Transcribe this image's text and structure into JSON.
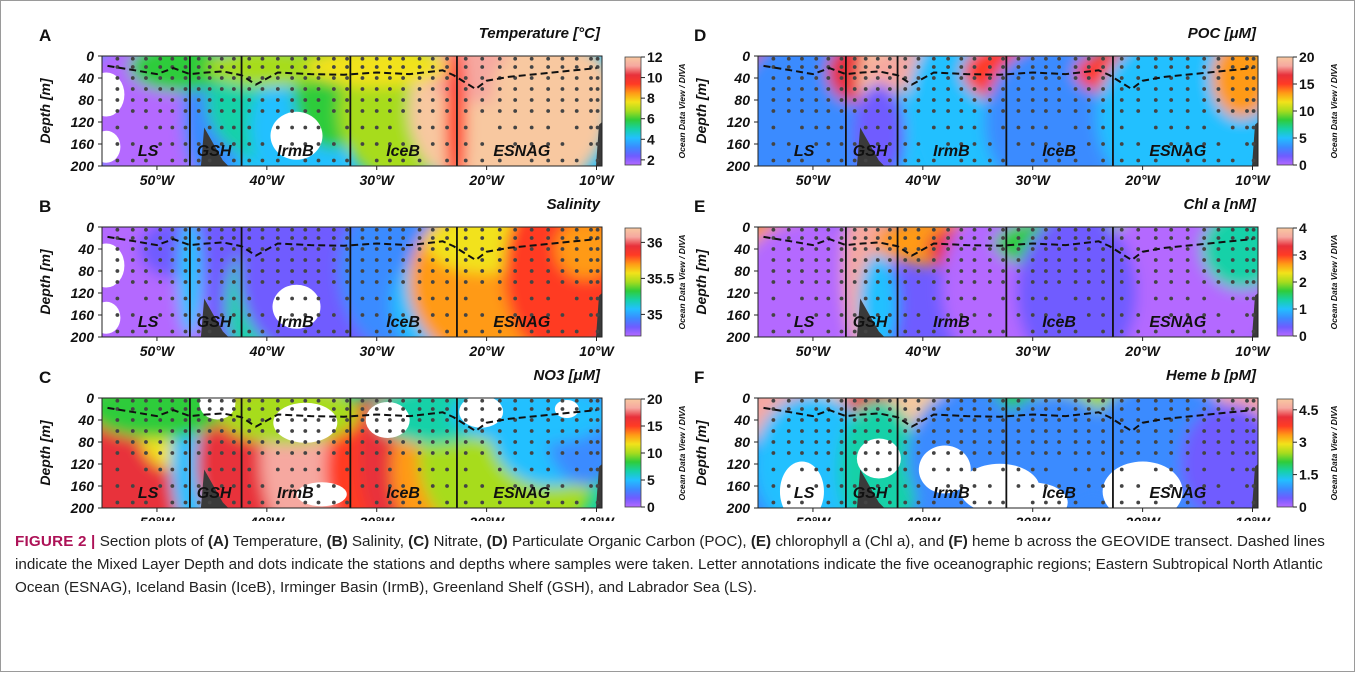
{
  "colors": {
    "caption_label": "#ad1257",
    "odv_scale": [
      "#b469ff",
      "#6f5cff",
      "#3a8bff",
      "#22c0ff",
      "#16d1a8",
      "#2fcc3a",
      "#a7dc1e",
      "#f2e21a",
      "#ff9a16",
      "#ff3b24",
      "#e8303a",
      "#f6a8a0",
      "#f8c8a0"
    ]
  },
  "xaxis": {
    "label": "",
    "ticks": [
      "50°W",
      "40°W",
      "30°W",
      "20°W",
      "10°W"
    ],
    "tick_values": [
      50,
      40,
      30,
      20,
      10
    ],
    "range": [
      55,
      9.5
    ]
  },
  "yaxis": {
    "label": "Depth [m]",
    "ticks": [
      "0",
      "40",
      "80",
      "120",
      "160",
      "200"
    ],
    "tick_values": [
      0,
      40,
      80,
      120,
      160,
      200
    ]
  },
  "colorbar_label": "Ocean Data View / DIVA",
  "region_boundaries": [
    47,
    42.3,
    32.4,
    22.7
  ],
  "panels": [
    {
      "letter": "A",
      "title": "Temperature [°C]",
      "colorbar_ticks": [
        "12",
        "10",
        "8",
        "6",
        "4",
        "2"
      ],
      "colorbar_values": [
        12,
        10,
        8,
        6,
        4,
        2
      ],
      "regions": [
        "LS",
        "GSH",
        "IrmB",
        "IceB",
        "ESNAG"
      ]
    },
    {
      "letter": "B",
      "title": "Salinity",
      "colorbar_ticks": [
        "36",
        "35.5",
        "35"
      ],
      "colorbar_values": [
        36,
        35.5,
        35
      ],
      "regions": [
        "LS",
        "GSH",
        "IrmB",
        "IceB",
        "ESNAG"
      ]
    },
    {
      "letter": "C",
      "title": "NO3 [μM]",
      "colorbar_ticks": [
        "20",
        "15",
        "10",
        "5",
        "0"
      ],
      "colorbar_values": [
        20,
        15,
        10,
        5,
        0
      ],
      "regions": [
        "LS",
        "GSH",
        "IrmB",
        "IceB",
        "ESNAG"
      ]
    },
    {
      "letter": "D",
      "title": "POC [μM]",
      "colorbar_ticks": [
        "20",
        "15",
        "10",
        "5",
        "0"
      ],
      "colorbar_values": [
        20,
        15,
        10,
        5,
        0
      ],
      "regions": [
        "LS",
        "GSH",
        "IrmB",
        "IceB",
        "ESNAG"
      ]
    },
    {
      "letter": "E",
      "title": "Chl a [nM]",
      "colorbar_ticks": [
        "4",
        "3",
        "2",
        "1",
        "0"
      ],
      "colorbar_values": [
        4,
        3,
        2,
        1,
        0
      ],
      "regions": [
        "LS",
        "GSH",
        "IrmB",
        "IceB",
        "ESNAG"
      ]
    },
    {
      "letter": "F",
      "title": "Heme b [pM]",
      "colorbar_ticks": [
        "4.5",
        "3",
        "1.5",
        "0"
      ],
      "colorbar_values": [
        4.5,
        3,
        1.5,
        0
      ],
      "regions": [
        "LS",
        "GSH",
        "IrmB",
        "IceB",
        "ESNAG"
      ]
    }
  ],
  "mixed_layer_depth": {
    "lon": [
      54.5,
      52,
      50,
      48.5,
      47,
      45.5,
      44,
      42.3,
      41,
      39,
      36,
      33,
      30,
      27,
      24,
      23,
      21,
      20,
      18,
      15,
      12,
      10
    ],
    "depth": [
      18,
      26,
      33,
      22,
      33,
      30,
      28,
      35,
      52,
      30,
      33,
      34,
      30,
      33,
      26,
      35,
      60,
      45,
      38,
      32,
      26,
      22
    ]
  },
  "caption": {
    "label": "FIGURE 2 |",
    "parts": [
      {
        "t": " Section plots of ",
        "b": false
      },
      {
        "t": "(A)",
        "b": true
      },
      {
        "t": " Temperature, ",
        "b": false
      },
      {
        "t": "(B)",
        "b": true
      },
      {
        "t": " Salinity, ",
        "b": false
      },
      {
        "t": "(C)",
        "b": true
      },
      {
        "t": " Nitrate, ",
        "b": false
      },
      {
        "t": "(D)",
        "b": true
      },
      {
        "t": " Particulate Organic Carbon (POC), ",
        "b": false
      },
      {
        "t": "(E)",
        "b": true
      },
      {
        "t": " chlorophyll a (Chl a), and ",
        "b": false
      },
      {
        "t": "(F)",
        "b": true
      },
      {
        "t": " heme b across the GEOVIDE transect. Dashed lines indicate the Mixed Layer Depth and dots indicate the stations and depths where samples were taken. Letter annotations indicate the five oceanographic regions; Eastern Subtropical North Atlantic Ocean (ESNAG), Iceland Basin (IceB), Irminger Basin (IrmB), Greenland Shelf (GSH), and Labrador Sea (LS).",
        "b": false
      }
    ]
  }
}
